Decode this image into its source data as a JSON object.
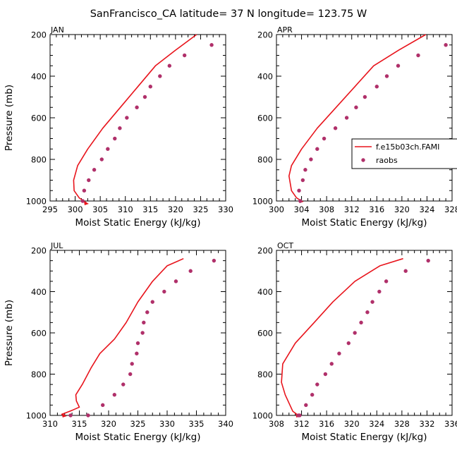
{
  "figure": {
    "title": "SanFrancisco_CA  latitude= 37 N longitude= 123.75 W"
  },
  "colors": {
    "model": "#e8141c",
    "obs": "#b0306a",
    "axis": "#000000"
  },
  "legend": {
    "entries": [
      "f.e15b03ch.FAMI",
      "raobs"
    ],
    "location": "right of APR panel"
  },
  "chart_data": [
    {
      "type": "line",
      "panel": "JAN",
      "xlabel": "Moist Static Energy (kJ/kg)",
      "ylabel": "Pressure (mb)",
      "xlim": [
        295,
        330
      ],
      "ylim": [
        1000,
        200
      ],
      "xticks": [
        295,
        300,
        305,
        310,
        315,
        320,
        325,
        330
      ],
      "yticks": [
        200,
        400,
        600,
        800,
        1000
      ],
      "series": [
        {
          "name": "f.e15b03ch.FAMI",
          "style": "line",
          "x": [
            324.2,
            320.0,
            316.0,
            312.5,
            309.0,
            305.5,
            302.5,
            300.5,
            299.7,
            299.8,
            300.8,
            302.3
          ],
          "y": [
            200,
            275,
            350,
            450,
            550,
            650,
            750,
            830,
            900,
            950,
            985,
            1010
          ]
        },
        {
          "name": "raobs",
          "style": "markers",
          "x": [
            327.2,
            321.8,
            318.8,
            316.9,
            315.0,
            313.9,
            312.3,
            310.3,
            308.9,
            307.9,
            306.5,
            305.3,
            303.8,
            302.7,
            301.8,
            301.5
          ],
          "y": [
            250,
            300,
            350,
            400,
            450,
            500,
            550,
            600,
            650,
            700,
            750,
            800,
            850,
            900,
            950,
            1000
          ]
        }
      ]
    },
    {
      "type": "line",
      "panel": "APR",
      "xlabel": "Moist Static Energy (kJ/kg)",
      "ylabel": "",
      "xlim": [
        300,
        328
      ],
      "ylim": [
        1000,
        200
      ],
      "xticks": [
        300,
        304,
        308,
        312,
        316,
        320,
        324,
        328
      ],
      "yticks": [
        200,
        400,
        600,
        800,
        1000
      ],
      "series": [
        {
          "name": "f.e15b03ch.FAMI",
          "style": "line",
          "x": [
            323.8,
            319.5,
            315.5,
            312.5,
            309.5,
            306.5,
            304.0,
            302.4,
            302.0,
            302.4,
            303.2,
            304.0
          ],
          "y": [
            200,
            275,
            350,
            450,
            550,
            650,
            750,
            830,
            880,
            950,
            985,
            1000
          ]
        },
        {
          "name": "raobs",
          "style": "markers",
          "x": [
            327.0,
            322.6,
            319.4,
            317.6,
            316.0,
            314.1,
            312.7,
            311.2,
            309.4,
            307.6,
            306.5,
            305.5,
            304.6,
            304.2,
            303.6,
            303.8
          ],
          "y": [
            250,
            300,
            350,
            400,
            450,
            500,
            550,
            600,
            650,
            700,
            750,
            800,
            850,
            900,
            950,
            1000
          ]
        }
      ]
    },
    {
      "type": "line",
      "panel": "JUL",
      "xlabel": "Moist Static Energy (kJ/kg)",
      "ylabel": "Pressure (mb)",
      "xlim": [
        310,
        340
      ],
      "ylim": [
        1000,
        200
      ],
      "xticks": [
        310,
        315,
        320,
        325,
        330,
        335,
        340
      ],
      "yticks": [
        200,
        400,
        600,
        800,
        1000
      ],
      "series": [
        {
          "name": "f.e15b03ch.FAMI",
          "style": "line",
          "x": [
            332.8,
            330.0,
            327.5,
            325.0,
            323.0,
            321.0,
            318.5,
            317.0,
            315.5,
            314.4,
            314.5,
            315.0,
            313.8,
            312.0,
            312.5
          ],
          "y": [
            240,
            275,
            350,
            450,
            550,
            630,
            700,
            770,
            850,
            900,
            930,
            960,
            975,
            995,
            1000
          ]
        },
        {
          "name": "raobs",
          "style": "markers",
          "x": [
            338.0,
            334.0,
            331.5,
            329.5,
            327.5,
            326.6,
            326.0,
            325.8,
            325.0,
            324.8,
            324.0,
            323.7,
            322.5,
            321.0,
            319.0,
            316.5,
            313.5
          ],
          "y": [
            250,
            300,
            350,
            400,
            450,
            500,
            550,
            600,
            650,
            700,
            750,
            800,
            850,
            900,
            950,
            1000,
            1000
          ]
        }
      ]
    },
    {
      "type": "line",
      "panel": "OCT",
      "xlabel": "Moist Static Energy (kJ/kg)",
      "ylabel": "",
      "xlim": [
        308,
        336
      ],
      "ylim": [
        1000,
        200
      ],
      "xticks": [
        308,
        312,
        316,
        320,
        324,
        328,
        332,
        336
      ],
      "yticks": [
        200,
        400,
        600,
        800,
        1000
      ],
      "series": [
        {
          "name": "f.e15b03ch.FAMI",
          "style": "line",
          "x": [
            328.2,
            324.5,
            320.5,
            317.0,
            314.0,
            311.0,
            309.0,
            308.8,
            309.4,
            310.6,
            311.5
          ],
          "y": [
            240,
            275,
            350,
            450,
            550,
            650,
            750,
            840,
            900,
            980,
            1000
          ]
        },
        {
          "name": "raobs",
          "style": "markers",
          "x": [
            332.2,
            328.6,
            325.5,
            324.4,
            323.3,
            322.5,
            321.5,
            320.5,
            319.5,
            318.0,
            316.8,
            315.8,
            314.5,
            313.7,
            312.7,
            311.7,
            311.5
          ],
          "y": [
            250,
            300,
            350,
            400,
            450,
            500,
            550,
            600,
            650,
            700,
            750,
            800,
            850,
            900,
            950,
            1000,
            1000
          ]
        }
      ]
    }
  ]
}
